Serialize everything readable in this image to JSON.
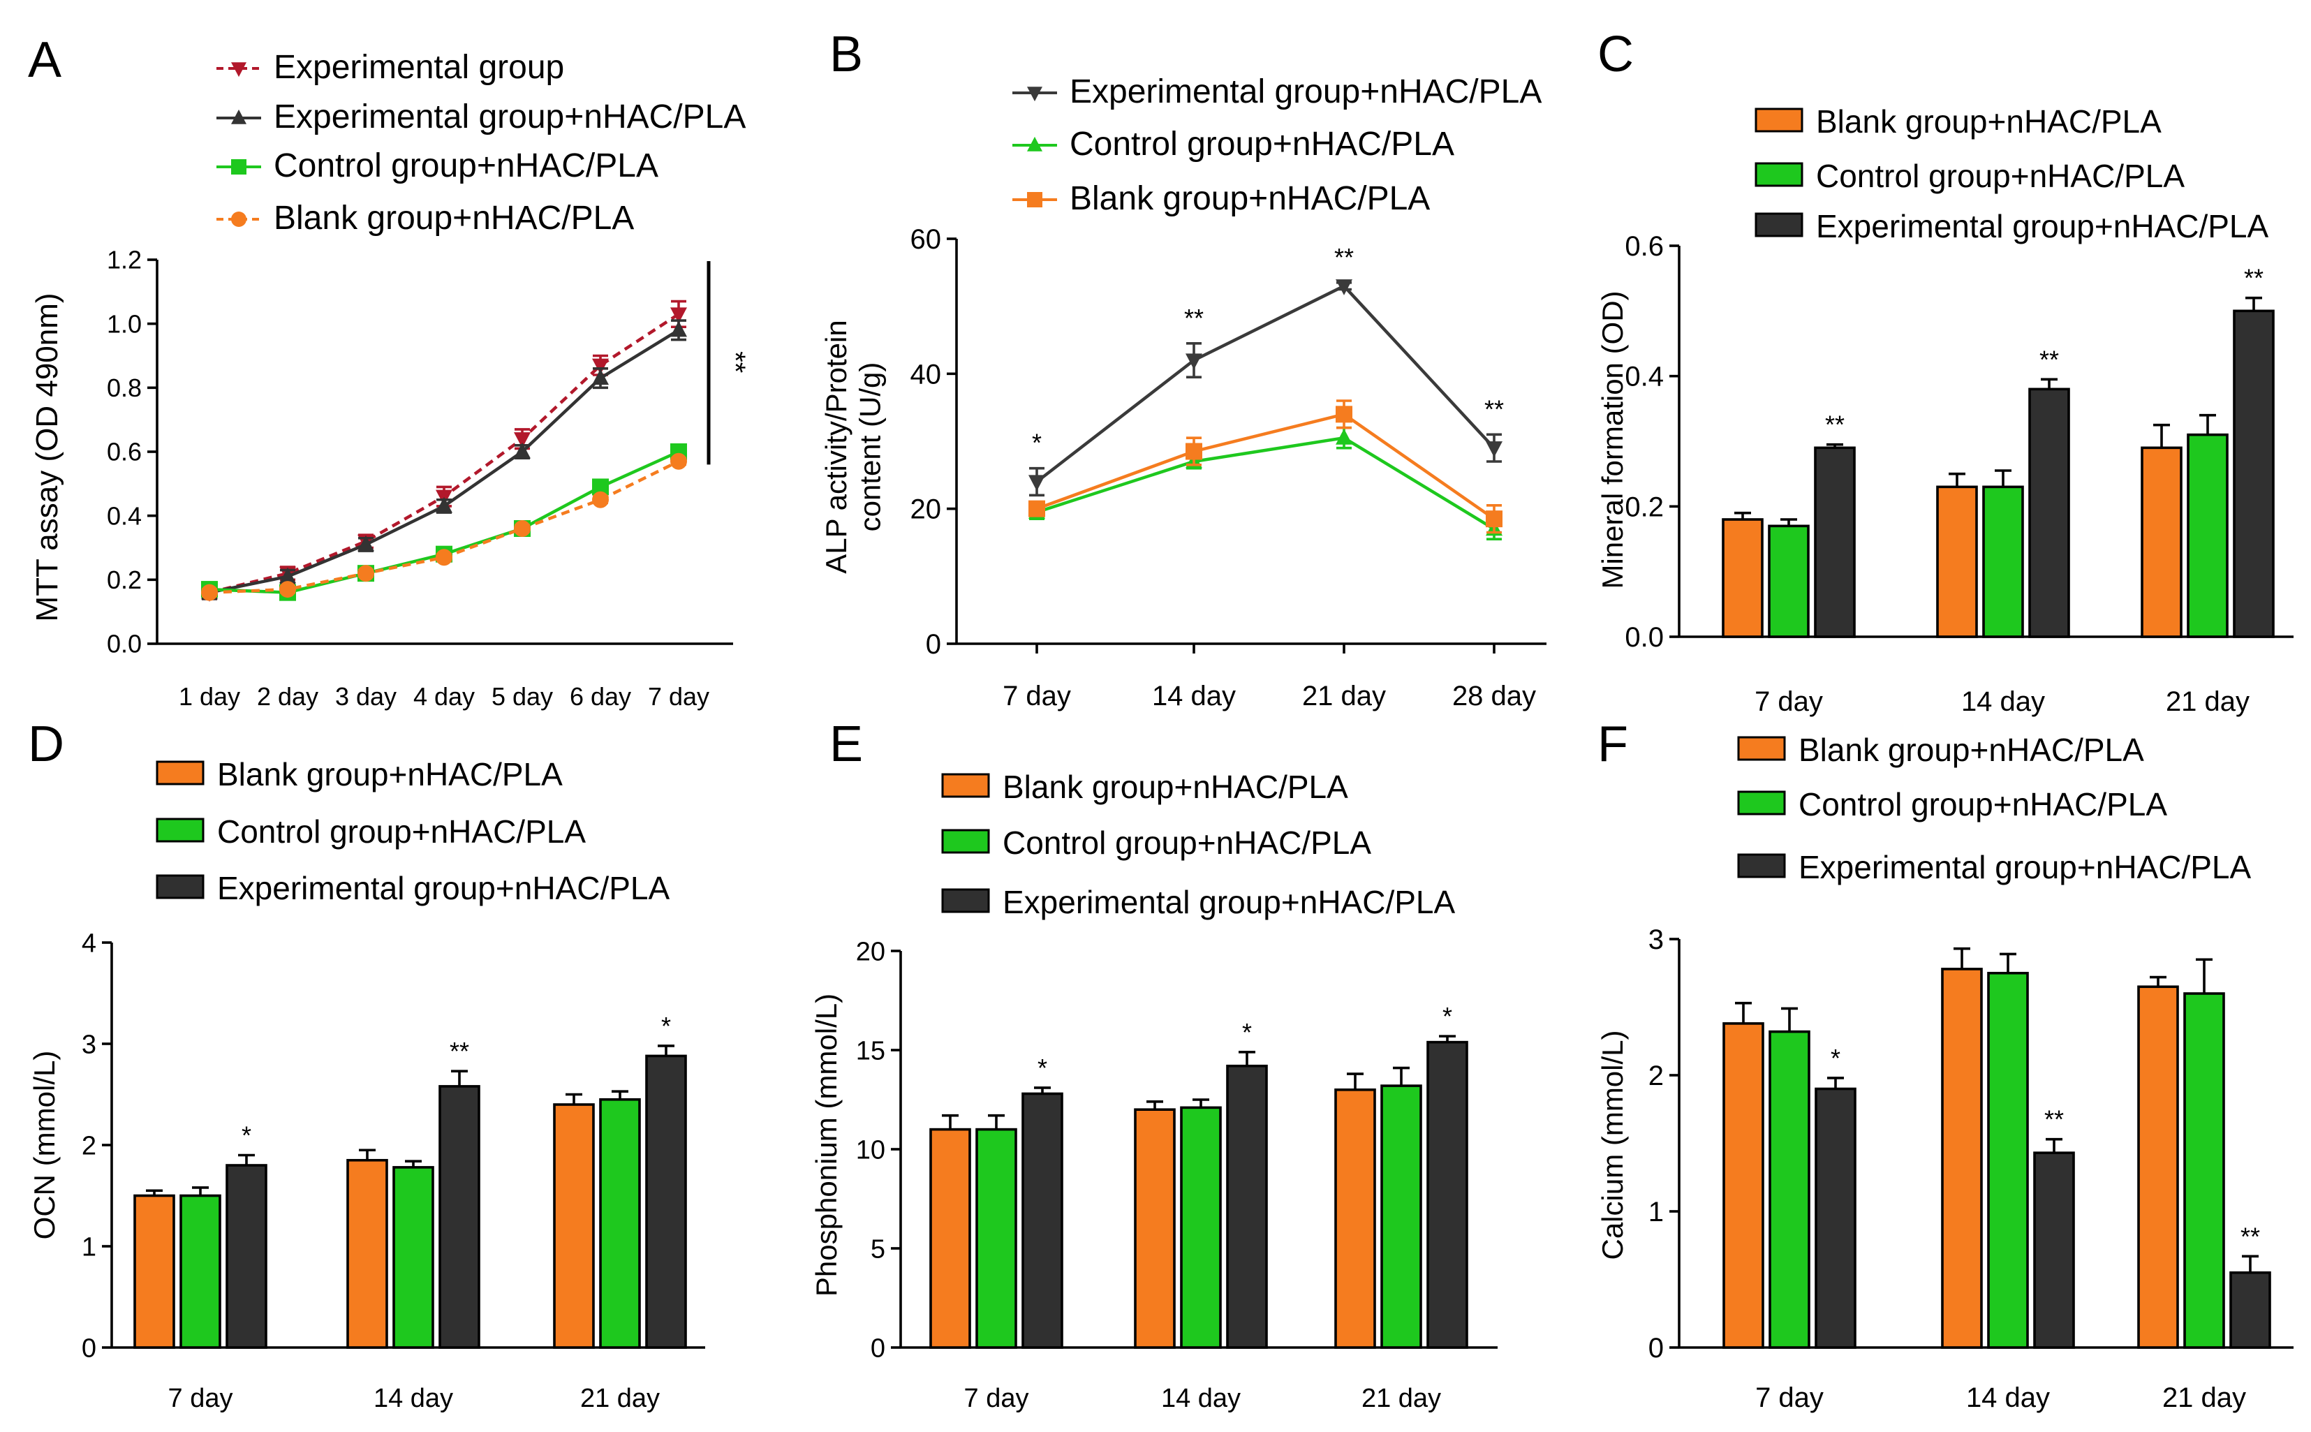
{
  "chart_data": [
    {
      "id": "A",
      "type": "line",
      "panel_label": "A",
      "ylabel": "MTT assay (OD 490nm)",
      "xlabel": "",
      "ylim": [
        0,
        1.2
      ],
      "yticks": [
        0.0,
        0.2,
        0.4,
        0.6,
        0.8,
        1.0,
        1.2
      ],
      "ytick_labels": [
        "0.0",
        "0.2",
        "0.4",
        "0.6",
        "0.8",
        "1.0",
        "1.2"
      ],
      "categories": [
        "1 day",
        "2 day",
        "3 day",
        "4 day",
        "5 day",
        "6 day",
        "7 day"
      ],
      "significance_label": "**",
      "series": [
        {
          "name": "Experimental group",
          "color": "#b2182b",
          "marker": "triangle-down",
          "dashed": true,
          "values": [
            0.16,
            0.22,
            0.32,
            0.46,
            0.64,
            0.87,
            1.03
          ],
          "errors": [
            0.02,
            0.02,
            0.02,
            0.03,
            0.03,
            0.03,
            0.04
          ]
        },
        {
          "name": "Experimental group+nHAC/PLA",
          "color": "#333333",
          "marker": "triangle-up",
          "dashed": false,
          "values": [
            0.16,
            0.21,
            0.31,
            0.43,
            0.6,
            0.83,
            0.98
          ],
          "errors": [
            0.02,
            0.02,
            0.02,
            0.02,
            0.02,
            0.03,
            0.03
          ]
        },
        {
          "name": "Control group+nHAC/PLA",
          "color": "#1ec81e",
          "marker": "square",
          "dashed": false,
          "values": [
            0.17,
            0.16,
            0.22,
            0.28,
            0.36,
            0.49,
            0.6
          ],
          "errors": [
            0.01,
            0.01,
            0.01,
            0.01,
            0.01,
            0.01,
            0.02
          ]
        },
        {
          "name": "Blank group+nHAC/PLA",
          "color": "#f57c1f",
          "marker": "circle",
          "dashed": true,
          "values": [
            0.16,
            0.17,
            0.22,
            0.27,
            0.36,
            0.45,
            0.57
          ],
          "errors": [
            0.01,
            0.01,
            0.01,
            0.01,
            0.01,
            0.01,
            0.01
          ]
        }
      ]
    },
    {
      "id": "B",
      "type": "line",
      "panel_label": "B",
      "ylabel": "ALP activity/Protein content (U/g)",
      "ylabel_lines": [
        "ALP activity/Protein",
        "content (U/g)"
      ],
      "xlabel": "",
      "ylim": [
        0,
        60
      ],
      "yticks": [
        0,
        20,
        40,
        60
      ],
      "ytick_labels": [
        "0",
        "20",
        "40",
        "60"
      ],
      "categories": [
        "7 day",
        "14 day",
        "21 day",
        "28 day"
      ],
      "annotations": [
        "*",
        "**",
        "**",
        "**"
      ],
      "series": [
        {
          "name": "Experimental group+nHAC/PLA",
          "color": "#3a3a3a",
          "marker": "triangle-down",
          "dashed": false,
          "values": [
            24,
            42,
            53,
            29
          ],
          "errors": [
            2,
            2.5,
            0.5,
            2
          ]
        },
        {
          "name": "Control group+nHAC/PLA",
          "color": "#1ec81e",
          "marker": "triangle-up",
          "dashed": false,
          "values": [
            19.5,
            27,
            30.5,
            17
          ],
          "errors": [
            1,
            1,
            1.5,
            1.5
          ]
        },
        {
          "name": "Blank group+nHAC/PLA",
          "color": "#f57c1f",
          "marker": "square",
          "dashed": false,
          "values": [
            20,
            28.5,
            34,
            18.5
          ],
          "errors": [
            1,
            2,
            2,
            2
          ]
        }
      ]
    },
    {
      "id": "C",
      "type": "bar",
      "panel_label": "C",
      "ylabel": "Mineral formation (OD)",
      "ylim": [
        0,
        0.6
      ],
      "yticks": [
        0.0,
        0.2,
        0.4,
        0.6
      ],
      "ytick_labels": [
        "0.0",
        "0.2",
        "0.4",
        "0.6"
      ],
      "categories": [
        "7 day",
        "14 day",
        "21 day"
      ],
      "annotations": [
        "**",
        "**",
        "**"
      ],
      "series": [
        {
          "name": "Blank group+nHAC/PLA",
          "color": "#f57c1f",
          "values": [
            0.18,
            0.23,
            0.29
          ],
          "errors": [
            0.01,
            0.02,
            0.035
          ]
        },
        {
          "name": "Control group+nHAC/PLA",
          "color": "#1ec81e",
          "values": [
            0.17,
            0.23,
            0.31
          ],
          "errors": [
            0.01,
            0.025,
            0.03
          ]
        },
        {
          "name": "Experimental group+nHAC/PLA",
          "color": "#303030",
          "values": [
            0.29,
            0.38,
            0.5
          ],
          "errors": [
            0.005,
            0.015,
            0.02
          ]
        }
      ]
    },
    {
      "id": "D",
      "type": "bar",
      "panel_label": "D",
      "ylabel": "OCN (mmol/L)",
      "ylim": [
        0,
        4
      ],
      "yticks": [
        0,
        1,
        2,
        3,
        4
      ],
      "ytick_labels": [
        "0",
        "1",
        "2",
        "3",
        "4"
      ],
      "categories": [
        "7 day",
        "14 day",
        "21 day"
      ],
      "annotations": [
        "*",
        "**",
        "*"
      ],
      "series": [
        {
          "name": "Blank group+nHAC/PLA",
          "color": "#f57c1f",
          "values": [
            1.5,
            1.85,
            2.4
          ],
          "errors": [
            0.05,
            0.1,
            0.1
          ]
        },
        {
          "name": "Control group+nHAC/PLA",
          "color": "#1ec81e",
          "values": [
            1.5,
            1.78,
            2.45
          ],
          "errors": [
            0.08,
            0.06,
            0.08
          ]
        },
        {
          "name": "Experimental group+nHAC/PLA",
          "color": "#303030",
          "values": [
            1.8,
            2.58,
            2.88
          ],
          "errors": [
            0.1,
            0.15,
            0.1
          ]
        }
      ]
    },
    {
      "id": "E",
      "type": "bar",
      "panel_label": "E",
      "ylabel": "Phosphonium (mmol/L)",
      "ylim": [
        0,
        20
      ],
      "yticks": [
        0,
        5,
        10,
        15,
        20
      ],
      "ytick_labels": [
        "0",
        "5",
        "10",
        "15",
        "20"
      ],
      "categories": [
        "7 day",
        "14 day",
        "21 day"
      ],
      "annotations": [
        "*",
        "*",
        "*"
      ],
      "series": [
        {
          "name": "Blank group+nHAC/PLA",
          "color": "#f57c1f",
          "values": [
            11,
            12,
            13
          ],
          "errors": [
            0.7,
            0.4,
            0.8
          ]
        },
        {
          "name": "Control group+nHAC/PLA",
          "color": "#1ec81e",
          "values": [
            11,
            12.1,
            13.2
          ],
          "errors": [
            0.7,
            0.4,
            0.9
          ]
        },
        {
          "name": "Experimental group+nHAC/PLA",
          "color": "#303030",
          "values": [
            12.8,
            14.2,
            15.4
          ],
          "errors": [
            0.3,
            0.7,
            0.3
          ]
        }
      ]
    },
    {
      "id": "F",
      "type": "bar",
      "panel_label": "F",
      "ylabel": "Calcium (mmol/L)",
      "ylim": [
        0,
        3
      ],
      "yticks": [
        0,
        1,
        2,
        3
      ],
      "ytick_labels": [
        "0",
        "1",
        "2",
        "3"
      ],
      "categories": [
        "7 day",
        "14 day",
        "21 day"
      ],
      "annotations": [
        "*",
        "**",
        "**"
      ],
      "series": [
        {
          "name": "Blank group+nHAC/PLA",
          "color": "#f57c1f",
          "values": [
            2.38,
            2.78,
            2.65
          ],
          "errors": [
            0.15,
            0.15,
            0.07
          ]
        },
        {
          "name": "Control group+nHAC/PLA",
          "color": "#1ec81e",
          "values": [
            2.32,
            2.75,
            2.6
          ],
          "errors": [
            0.17,
            0.14,
            0.25
          ]
        },
        {
          "name": "Experimental group+nHAC/PLA",
          "color": "#303030",
          "values": [
            1.9,
            1.43,
            0.55
          ],
          "errors": [
            0.08,
            0.1,
            0.12
          ]
        }
      ]
    }
  ]
}
